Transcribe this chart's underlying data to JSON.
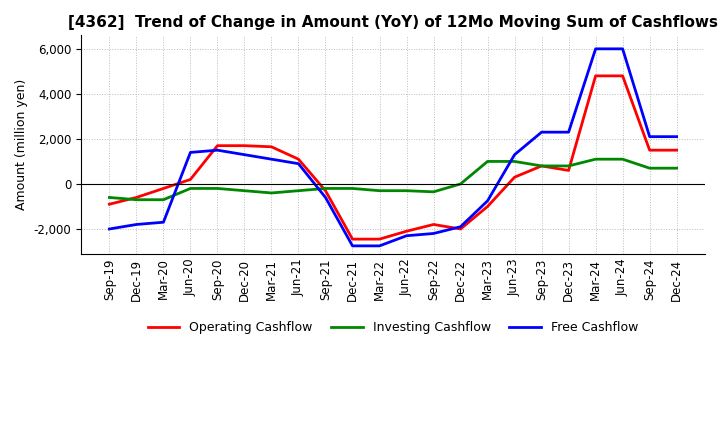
{
  "title": "[4362]  Trend of Change in Amount (YoY) of 12Mo Moving Sum of Cashflows",
  "ylabel": "Amount (million yen)",
  "x_labels": [
    "Sep-19",
    "Dec-19",
    "Mar-20",
    "Jun-20",
    "Sep-20",
    "Dec-20",
    "Mar-21",
    "Jun-21",
    "Sep-21",
    "Dec-21",
    "Mar-22",
    "Jun-22",
    "Sep-22",
    "Dec-22",
    "Mar-23",
    "Jun-23",
    "Sep-23",
    "Dec-23",
    "Mar-24",
    "Jun-24",
    "Sep-24",
    "Dec-24"
  ],
  "operating": [
    -900,
    -600,
    -200,
    200,
    1700,
    1700,
    1650,
    1100,
    -300,
    -2450,
    -2450,
    -2100,
    -1800,
    -2000,
    -1000,
    300,
    800,
    600,
    4800,
    4800,
    1500,
    1500
  ],
  "investing": [
    -600,
    -700,
    -700,
    -200,
    -200,
    -300,
    -400,
    -300,
    -200,
    -200,
    -300,
    -300,
    -350,
    0,
    1000,
    1000,
    800,
    800,
    1100,
    1100,
    700,
    700
  ],
  "free": [
    -2000,
    -1800,
    -1700,
    1400,
    1500,
    1300,
    1100,
    900,
    -600,
    -2750,
    -2750,
    -2300,
    -2200,
    -1900,
    -750,
    1300,
    2300,
    2300,
    6000,
    6000,
    2100,
    2100
  ],
  "ylim": [
    -3100,
    6600
  ],
  "yticks": [
    -2000,
    0,
    2000,
    4000,
    6000
  ],
  "colors": {
    "operating": "#ff0000",
    "investing": "#008800",
    "free": "#0000ff"
  },
  "legend": {
    "operating": "Operating Cashflow",
    "investing": "Investing Cashflow",
    "free": "Free Cashflow"
  },
  "background": "#ffffff",
  "grid_color": "#bbbbbb",
  "title_fontsize": 11,
  "label_fontsize": 9,
  "tick_fontsize": 8.5
}
